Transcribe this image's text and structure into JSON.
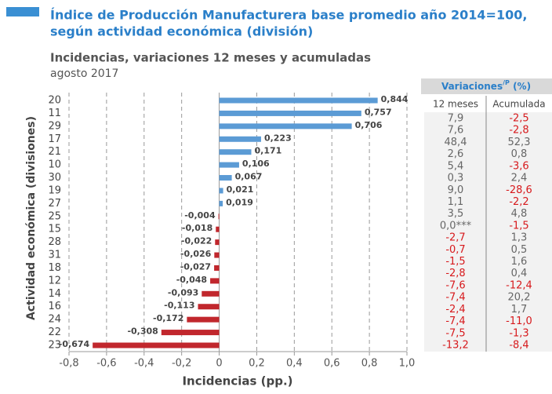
{
  "chart_data": {
    "type": "hbar",
    "title": [
      "Índice de Producción Manufacturera base promedio año 2014=100,",
      "según actividad económica (división)"
    ],
    "subtitle": "Incidencias, variaciones 12 meses y acumuladas",
    "period": "agosto 2017",
    "x_label": "Incidencias (pp.)",
    "y_label": "Actividad económica (divisiones)",
    "categories": [
      "20",
      "11",
      "29",
      "17",
      "21",
      "10",
      "30",
      "19",
      "27",
      "25",
      "15",
      "28",
      "31",
      "18",
      "12",
      "14",
      "16",
      "24",
      "22",
      "23"
    ],
    "values": [
      0.844,
      0.757,
      0.706,
      0.223,
      0.171,
      0.106,
      0.067,
      0.021,
      0.019,
      -0.004,
      -0.018,
      -0.022,
      -0.026,
      -0.027,
      -0.048,
      -0.093,
      -0.113,
      -0.172,
      -0.308,
      -0.674
    ],
    "value_labels": [
      "0,844",
      "0,757",
      "0,706",
      "0,223",
      "0,171",
      "0,106",
      "0,067",
      "0,021",
      "0,019",
      "-0,004",
      "-0,018",
      "-0,022",
      "-0,026",
      "-0,027",
      "-0,048",
      "-0,093",
      "-0,113",
      "-0,172",
      "-0,308",
      "-0,674"
    ],
    "color": "#5b9bd5",
    "negative_color": "#c1272d",
    "xlim": [
      -0.8,
      1.0
    ],
    "xticks": [
      {
        "value": -0.8,
        "label": "-0,8"
      },
      {
        "value": -0.6,
        "label": "-0,6"
      },
      {
        "value": -0.4,
        "label": "-0,4"
      },
      {
        "value": -0.2,
        "label": "-0,2"
      },
      0,
      {
        "value": 0.2,
        "label": "0,2"
      },
      {
        "value": 0.4,
        "label": "0,4"
      },
      {
        "value": 0.6,
        "label": "0,6"
      },
      {
        "value": 0.8,
        "label": "0,8"
      },
      {
        "value": 1.0,
        "label": "1,0"
      }
    ],
    "grid": true
  },
  "table": {
    "header": {
      "text": "Variaciones",
      "sup": "/P",
      "suffix": " (%)"
    },
    "columns": [
      "12 meses",
      "Acumulada"
    ],
    "rows": [
      [
        "7,9",
        "-2,5"
      ],
      [
        "7,6",
        "-2,8"
      ],
      [
        "48,4",
        "52,3"
      ],
      [
        "2,6",
        "0,8"
      ],
      [
        "5,4",
        "-3,6"
      ],
      [
        "0,3",
        "2,4"
      ],
      [
        "9,0",
        "-28,6"
      ],
      [
        "1,1",
        "-2,2"
      ],
      [
        "3,5",
        "4,8"
      ],
      [
        "0,0***",
        "-1,5"
      ],
      [
        "-2,7",
        "1,3"
      ],
      [
        "-0,7",
        "0,5"
      ],
      [
        "-1,5",
        "1,6"
      ],
      [
        "-2,8",
        "0,4"
      ],
      [
        "-7,6",
        "-12,4"
      ],
      [
        "-7,4",
        "20,2"
      ],
      [
        "-2,4",
        "1,7"
      ],
      [
        "-7,4",
        "-11,0"
      ],
      [
        "-7,5",
        "-1,3"
      ],
      [
        "-13,2",
        "-8,4"
      ]
    ]
  }
}
